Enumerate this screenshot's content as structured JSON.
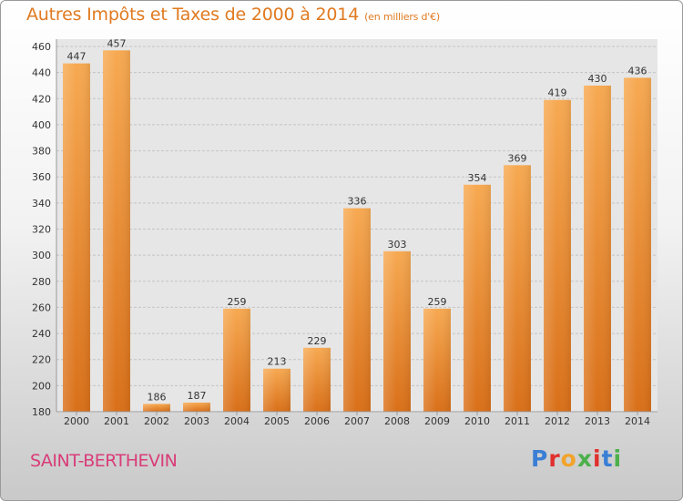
{
  "title": "Autres Impôts et Taxes de 2000 à 2014",
  "title_unit": "(en milliers d'€)",
  "commune": "SAINT-BERTHEVIN",
  "logo": [
    "P",
    "r",
    "o",
    "x",
    "i",
    "t",
    "i"
  ],
  "chart_data": {
    "type": "bar",
    "categories": [
      "2000",
      "2001",
      "2002",
      "2003",
      "2004",
      "2005",
      "2006",
      "2007",
      "2008",
      "2009",
      "2010",
      "2011",
      "2012",
      "2013",
      "2014"
    ],
    "values": [
      447,
      457,
      186,
      187,
      259,
      213,
      229,
      336,
      303,
      259,
      354,
      369,
      419,
      430,
      436
    ],
    "ylim": [
      180,
      460
    ],
    "yticks": [
      180,
      200,
      220,
      240,
      260,
      280,
      300,
      320,
      340,
      360,
      380,
      400,
      420,
      440,
      460
    ],
    "grid": true,
    "bar_color": "#f29a3e"
  }
}
